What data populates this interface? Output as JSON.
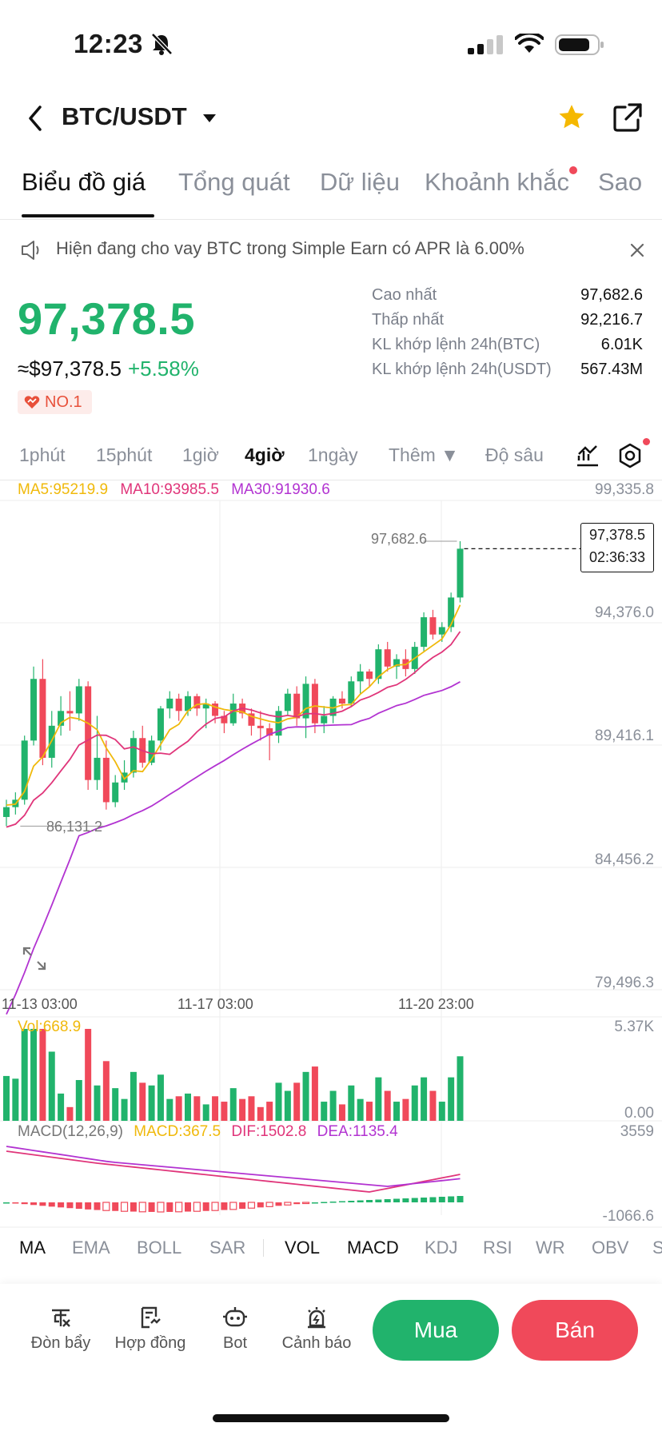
{
  "status_bar": {
    "time": "12:23"
  },
  "header": {
    "pair": "BTC/USDT"
  },
  "tabs": [
    {
      "label": "Biểu đồ giá",
      "active": true
    },
    {
      "label": "Tổng quát"
    },
    {
      "label": "Dữ liệu"
    },
    {
      "label": "Khoảnh khắc",
      "badge": true
    },
    {
      "label": "Sao"
    }
  ],
  "notice": {
    "text": "Hiện đang cho vay BTC trong Simple Earn có APR là 6.00%"
  },
  "price": {
    "last": "97,378.5",
    "approx_usd": "≈$97,378.5",
    "change": "+5.58%",
    "rank": "NO.1"
  },
  "stats": [
    {
      "label": "Cao nhất",
      "value": "97,682.6"
    },
    {
      "label": "Thấp nhất",
      "value": "92,216.7"
    },
    {
      "label": "KL khớp lệnh 24h(BTC)",
      "value": "6.01K"
    },
    {
      "label": "KL khớp lệnh 24h(USDT)",
      "value": "567.43M"
    }
  ],
  "timeframes": [
    {
      "label": "1phút"
    },
    {
      "label": "15phút"
    },
    {
      "label": "1giờ"
    },
    {
      "label": "4giờ",
      "active": true
    },
    {
      "label": "1ngày"
    },
    {
      "label": "Thêm ▼"
    },
    {
      "label": "Độ sâu"
    }
  ],
  "ma_legend": {
    "ma5": "MA5:95219.9",
    "ma10": "MA10:93985.5",
    "ma30": "MA30:91930.6"
  },
  "colors": {
    "up": "#21b36c",
    "down": "#f0495a",
    "ma5": "#f0b90b",
    "ma10": "#e0357a",
    "ma30": "#b233d1"
  },
  "chart_data": {
    "type": "candlestick",
    "y_axis_labels": [
      "99,335.8",
      "94,376.0",
      "89,416.1",
      "84,456.2",
      "79,496.3"
    ],
    "ylim": [
      79496.3,
      99335.8
    ],
    "x_axis_labels": [
      "11-13 03:00",
      "11-17 03:00",
      "11-20 23:00"
    ],
    "high_marker": "97,682.6",
    "low_marker": "86,131.2",
    "last_price": "97,378.5",
    "countdown": "02:36:33",
    "candles": [
      [
        86500,
        87200,
        86131,
        86900
      ],
      [
        86900,
        87500,
        86600,
        87200
      ],
      [
        87200,
        89800,
        87000,
        89600
      ],
      [
        89600,
        92600,
        89400,
        92100
      ],
      [
        92100,
        92900,
        88600,
        88900
      ],
      [
        88900,
        90800,
        88500,
        90200
      ],
      [
        90200,
        91400,
        89800,
        90800
      ],
      [
        90800,
        91600,
        90000,
        90700
      ],
      [
        90700,
        92100,
        90400,
        91800
      ],
      [
        91800,
        92000,
        87600,
        88000
      ],
      [
        88000,
        90600,
        87600,
        88900
      ],
      [
        88900,
        89600,
        86800,
        87100
      ],
      [
        87100,
        88200,
        86900,
        87900
      ],
      [
        87900,
        88800,
        87600,
        88300
      ],
      [
        88300,
        90000,
        88100,
        89700
      ],
      [
        89700,
        90200,
        88500,
        88700
      ],
      [
        88700,
        89800,
        88600,
        89600
      ],
      [
        89600,
        91000,
        89200,
        90900
      ],
      [
        90900,
        91600,
        90500,
        91300
      ],
      [
        91300,
        91500,
        90400,
        90800
      ],
      [
        90800,
        91600,
        90600,
        91400
      ],
      [
        91400,
        91500,
        90600,
        90900
      ],
      [
        90900,
        91300,
        90100,
        91100
      ],
      [
        91100,
        91200,
        90300,
        90600
      ],
      [
        90600,
        90800,
        89900,
        90300
      ],
      [
        90300,
        91500,
        90200,
        91100
      ],
      [
        91100,
        91300,
        90500,
        90700
      ],
      [
        90700,
        90900,
        89800,
        90200
      ],
      [
        90200,
        90800,
        89600,
        90100
      ],
      [
        90100,
        90300,
        88800,
        89800
      ],
      [
        89800,
        91000,
        89500,
        90800
      ],
      [
        90800,
        91700,
        90600,
        91500
      ],
      [
        91500,
        91800,
        90200,
        90500
      ],
      [
        90500,
        92200,
        89700,
        91900
      ],
      [
        91900,
        92100,
        89900,
        90300
      ],
      [
        90300,
        91000,
        89900,
        90600
      ],
      [
        90600,
        91400,
        90300,
        91300
      ],
      [
        91300,
        91600,
        90900,
        91100
      ],
      [
        91100,
        92200,
        91000,
        92000
      ],
      [
        92000,
        92700,
        91500,
        92400
      ],
      [
        92400,
        92500,
        91800,
        92100
      ],
      [
        92100,
        93500,
        91900,
        93300
      ],
      [
        93300,
        93600,
        92400,
        92600
      ],
      [
        92600,
        93100,
        92100,
        92900
      ],
      [
        92900,
        93300,
        92200,
        92500
      ],
      [
        92500,
        93600,
        92300,
        93400
      ],
      [
        93400,
        94800,
        93200,
        94600
      ],
      [
        94600,
        94900,
        93700,
        93900
      ],
      [
        93900,
        94400,
        93600,
        94200
      ],
      [
        94200,
        95600,
        94000,
        95400
      ],
      [
        95400,
        97682.6,
        95200,
        97378.5
      ]
    ],
    "volume": {
      "label": "Vol:668.9",
      "max_label": "5.37K",
      "min_label": "0.00"
    },
    "macd": {
      "label": "MACD(12,26,9)",
      "macd": "MACD:367.5",
      "dif": "DIF:1502.8",
      "dea": "DEA:1135.4",
      "max_label": "3559",
      "min_label": "-1066.6"
    }
  },
  "indicators": [
    {
      "label": "MA",
      "active": true
    },
    {
      "label": "EMA"
    },
    {
      "label": "BOLL"
    },
    {
      "label": "SAR"
    },
    {
      "label": "VOL",
      "active": true
    },
    {
      "label": "MACD",
      "active": true
    },
    {
      "label": "KDJ"
    },
    {
      "label": "RSI"
    },
    {
      "label": "WR"
    },
    {
      "label": "OBV"
    },
    {
      "label": "S"
    }
  ],
  "bottom_tools": [
    {
      "label": "Đòn bẩy",
      "icon": "leverage-icon"
    },
    {
      "label": "Hợp đồng",
      "icon": "contract-icon"
    },
    {
      "label": "Bot",
      "icon": "bot-icon"
    },
    {
      "label": "Cảnh báo",
      "icon": "alarm-icon"
    }
  ],
  "actions": {
    "buy": "Mua",
    "sell": "Bán"
  }
}
